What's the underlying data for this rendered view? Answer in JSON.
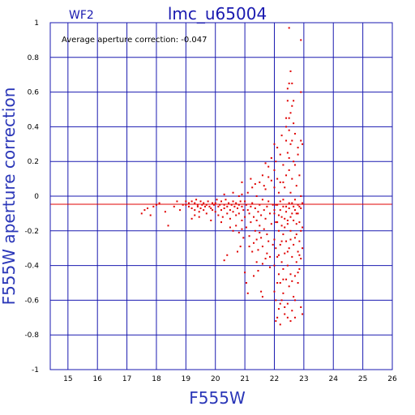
{
  "chart_data": {
    "type": "scatter",
    "title": "lmc_u65004",
    "panel_label": "WF2",
    "annotation": "Average aperture correction:  -0.047",
    "xlabel": "F555W",
    "ylabel": "F555W aperture correction",
    "xlim": [
      14.4,
      26
    ],
    "ylim": [
      -1,
      1
    ],
    "xticks": [
      15,
      16,
      17,
      18,
      19,
      20,
      21,
      22,
      23,
      24,
      25,
      26
    ],
    "yticks": [
      -1,
      -0.8,
      -0.6,
      -0.4,
      -0.2,
      0,
      0.2,
      0.4,
      0.6,
      0.8,
      1
    ],
    "ytick_labels": [
      "-1",
      "-0.8",
      "-0.6",
      "-0.4",
      "-0.2",
      "0",
      "0.2",
      "0.4",
      "0.6",
      "0.8",
      "1"
    ],
    "grid": true,
    "reference_line": {
      "y": -0.047,
      "color": "#e00000"
    },
    "colors": {
      "frame": "#1a1ab0",
      "grid": "#1a1ab0",
      "points": "#e00000"
    },
    "series": [
      {
        "points": [
          [
            17.5,
            -0.1
          ],
          [
            17.6,
            -0.08
          ],
          [
            17.7,
            -0.07
          ],
          [
            17.8,
            -0.11
          ],
          [
            17.9,
            -0.06
          ],
          [
            18.0,
            -0.05
          ],
          [
            18.1,
            -0.04
          ],
          [
            18.3,
            -0.09
          ],
          [
            18.4,
            -0.17
          ],
          [
            18.6,
            -0.06
          ],
          [
            18.7,
            -0.03
          ],
          [
            18.8,
            -0.08
          ],
          [
            18.9,
            -0.05
          ],
          [
            19.0,
            -0.05
          ],
          [
            19.1,
            -0.04
          ],
          [
            19.1,
            -0.06
          ],
          [
            19.2,
            -0.03
          ],
          [
            19.2,
            -0.07
          ],
          [
            19.3,
            -0.04
          ],
          [
            19.3,
            -0.08
          ],
          [
            19.35,
            -0.02
          ],
          [
            19.4,
            -0.05
          ],
          [
            19.4,
            -0.06
          ],
          [
            19.45,
            -0.09
          ],
          [
            19.5,
            -0.03
          ],
          [
            19.5,
            -0.07
          ],
          [
            19.55,
            -0.05
          ],
          [
            19.6,
            -0.04
          ],
          [
            19.6,
            -0.08
          ],
          [
            19.65,
            -0.06
          ],
          [
            19.7,
            -0.05
          ],
          [
            19.7,
            -0.1
          ],
          [
            19.75,
            -0.03
          ],
          [
            19.8,
            -0.06
          ],
          [
            19.85,
            -0.07
          ],
          [
            19.9,
            -0.04
          ],
          [
            19.9,
            -0.08
          ],
          [
            19.95,
            -0.05
          ],
          [
            19.2,
            -0.13
          ],
          [
            19.3,
            -0.11
          ],
          [
            19.45,
            -0.12
          ],
          [
            19.85,
            -0.14
          ],
          [
            19.0,
            -0.03
          ],
          [
            20.0,
            -0.04
          ],
          [
            20.0,
            -0.09
          ],
          [
            20.05,
            -0.02
          ],
          [
            20.1,
            -0.06
          ],
          [
            20.1,
            -0.11
          ],
          [
            20.15,
            -0.05
          ],
          [
            20.2,
            -0.03
          ],
          [
            20.2,
            -0.08
          ],
          [
            20.25,
            -0.12
          ],
          [
            20.3,
            -0.05
          ],
          [
            20.3,
            -0.07
          ],
          [
            20.35,
            -0.02
          ],
          [
            20.4,
            -0.06
          ],
          [
            20.4,
            -0.1
          ],
          [
            20.45,
            -0.04
          ],
          [
            20.5,
            -0.08
          ],
          [
            20.5,
            -0.13
          ],
          [
            20.55,
            -0.05
          ],
          [
            20.6,
            -0.03
          ],
          [
            20.6,
            -0.09
          ],
          [
            20.65,
            -0.06
          ],
          [
            20.7,
            -0.04
          ],
          [
            20.7,
            -0.11
          ],
          [
            20.75,
            -0.07
          ],
          [
            20.8,
            -0.05
          ],
          [
            20.8,
            -0.1
          ],
          [
            20.85,
            -0.03
          ],
          [
            20.9,
            -0.06
          ],
          [
            20.9,
            -0.14
          ],
          [
            20.95,
            -0.08
          ],
          [
            20.2,
            -0.15
          ],
          [
            20.5,
            -0.18
          ],
          [
            20.7,
            -0.17
          ],
          [
            20.8,
            -0.21
          ],
          [
            20.9,
            -0.19
          ],
          [
            20.3,
            0.01
          ],
          [
            20.6,
            0.02
          ],
          [
            20.8,
            0.0
          ],
          [
            20.9,
            0.01
          ],
          [
            20.4,
            -0.34
          ],
          [
            20.3,
            -0.37
          ],
          [
            20.85,
            -0.29
          ],
          [
            20.75,
            -0.32
          ],
          [
            20.6,
            -0.2
          ],
          [
            20.95,
            -0.24
          ],
          [
            20.9,
            0.08
          ],
          [
            21.0,
            -0.03
          ],
          [
            21.0,
            -0.12
          ],
          [
            21.05,
            -0.05
          ],
          [
            21.05,
            -0.18
          ],
          [
            21.1,
            -0.08
          ],
          [
            21.1,
            0.02
          ],
          [
            21.15,
            -0.1
          ],
          [
            21.15,
            -0.23
          ],
          [
            21.2,
            -0.06
          ],
          [
            21.2,
            -0.15
          ],
          [
            21.25,
            0.05
          ],
          [
            21.25,
            -0.04
          ],
          [
            21.3,
            -0.12
          ],
          [
            21.3,
            -0.27
          ],
          [
            21.35,
            -0.07
          ],
          [
            21.35,
            -0.2
          ],
          [
            21.4,
            0.0
          ],
          [
            21.4,
            -0.14
          ],
          [
            21.45,
            -0.09
          ],
          [
            21.45,
            -0.31
          ],
          [
            21.5,
            0.08
          ],
          [
            21.5,
            -0.05
          ],
          [
            21.5,
            -0.17
          ],
          [
            21.55,
            -0.11
          ],
          [
            21.55,
            -0.24
          ],
          [
            21.6,
            0.12
          ],
          [
            21.6,
            -0.02
          ],
          [
            21.6,
            -0.29
          ],
          [
            21.65,
            -0.08
          ],
          [
            21.65,
            -0.19
          ],
          [
            21.7,
            0.04
          ],
          [
            21.7,
            -0.13
          ],
          [
            21.7,
            -0.36
          ],
          [
            21.75,
            -0.06
          ],
          [
            21.75,
            -0.22
          ],
          [
            21.8,
            0.17
          ],
          [
            21.8,
            -0.03
          ],
          [
            21.8,
            -0.26
          ],
          [
            21.85,
            -0.1
          ],
          [
            21.85,
            -0.41
          ],
          [
            21.9,
            0.09
          ],
          [
            21.9,
            -0.16
          ],
          [
            21.95,
            -0.05
          ],
          [
            21.95,
            -0.28
          ],
          [
            21.0,
            -0.44
          ],
          [
            21.05,
            -0.5
          ],
          [
            21.1,
            -0.56
          ],
          [
            21.3,
            -0.46
          ],
          [
            21.4,
            -0.38
          ],
          [
            21.55,
            -0.55
          ],
          [
            21.6,
            -0.58
          ],
          [
            21.45,
            -0.43
          ],
          [
            21.7,
            0.19
          ],
          [
            21.8,
            0.11
          ],
          [
            21.9,
            0.22
          ],
          [
            21.2,
            0.1
          ],
          [
            21.35,
            0.07
          ],
          [
            21.6,
            -0.39
          ],
          [
            21.75,
            -0.33
          ],
          [
            21.85,
            -0.35
          ],
          [
            21.65,
            0.06
          ],
          [
            21.25,
            -0.32
          ],
          [
            21.5,
            -0.21
          ],
          [
            21.4,
            -0.25
          ],
          [
            21.15,
            -0.29
          ],
          [
            22.0,
            0.3
          ],
          [
            22.0,
            0.15
          ],
          [
            22.0,
            0.05
          ],
          [
            22.0,
            -0.1
          ],
          [
            22.0,
            -0.25
          ],
          [
            22.0,
            -0.4
          ],
          [
            22.0,
            -0.55
          ],
          [
            22.05,
            0.2
          ],
          [
            22.05,
            -0.05
          ],
          [
            22.05,
            -0.3
          ],
          [
            22.05,
            -0.6
          ],
          [
            22.1,
            0.28
          ],
          [
            22.1,
            0.1
          ],
          [
            22.1,
            -0.15
          ],
          [
            22.1,
            -0.35
          ],
          [
            22.1,
            -0.7
          ],
          [
            22.15,
            0.02
          ],
          [
            22.15,
            -0.2
          ],
          [
            22.15,
            -0.45
          ],
          [
            22.15,
            -0.65
          ],
          [
            22.2,
            0.24
          ],
          [
            22.2,
            0.08
          ],
          [
            22.2,
            -0.08
          ],
          [
            22.2,
            -0.28
          ],
          [
            22.2,
            -0.5
          ],
          [
            22.25,
            0.35
          ],
          [
            22.25,
            -0.12
          ],
          [
            22.25,
            -0.38
          ],
          [
            22.25,
            -0.6
          ],
          [
            22.3,
            0.18
          ],
          [
            22.3,
            -0.02
          ],
          [
            22.3,
            -0.22
          ],
          [
            22.3,
            -0.42
          ],
          [
            22.3,
            -0.56
          ],
          [
            22.35,
            0.05
          ],
          [
            22.35,
            -0.18
          ],
          [
            22.35,
            -0.33
          ],
          [
            22.35,
            -0.68
          ],
          [
            22.4,
            0.45
          ],
          [
            22.4,
            0.12
          ],
          [
            22.4,
            -0.06
          ],
          [
            22.4,
            -0.26
          ],
          [
            22.4,
            -0.48
          ],
          [
            22.45,
            0.55
          ],
          [
            22.45,
            0.25
          ],
          [
            22.45,
            -0.14
          ],
          [
            22.45,
            -0.4
          ],
          [
            22.45,
            -0.62
          ],
          [
            22.5,
            0.97
          ],
          [
            22.5,
            0.65
          ],
          [
            22.5,
            0.38
          ],
          [
            22.5,
            0.15
          ],
          [
            22.5,
            -0.04
          ],
          [
            22.5,
            -0.3
          ],
          [
            22.5,
            -0.52
          ],
          [
            22.55,
            0.72
          ],
          [
            22.55,
            0.3
          ],
          [
            22.55,
            0.02
          ],
          [
            22.55,
            -0.2
          ],
          [
            22.55,
            -0.45
          ],
          [
            22.6,
            0.52
          ],
          [
            22.6,
            0.1
          ],
          [
            22.6,
            -0.1
          ],
          [
            22.6,
            -0.35
          ],
          [
            22.6,
            -0.66
          ],
          [
            22.65,
            0.42
          ],
          [
            22.65,
            0.2
          ],
          [
            22.65,
            -0.06
          ],
          [
            22.65,
            -0.28
          ],
          [
            22.65,
            -0.58
          ],
          [
            22.7,
            0.18
          ],
          [
            22.7,
            -0.02
          ],
          [
            22.7,
            -0.24
          ],
          [
            22.7,
            -0.46
          ],
          [
            22.7,
            -0.7
          ],
          [
            22.75,
            0.06
          ],
          [
            22.75,
            -0.16
          ],
          [
            22.75,
            -0.38
          ],
          [
            22.8,
            0.28
          ],
          [
            22.8,
            -0.1
          ],
          [
            22.8,
            -0.32
          ],
          [
            22.8,
            -0.5
          ],
          [
            22.85,
            0.12
          ],
          [
            22.85,
            -0.06
          ],
          [
            22.85,
            -0.26
          ],
          [
            22.85,
            -0.42
          ],
          [
            22.9,
            0.9
          ],
          [
            22.9,
            0.6
          ],
          [
            22.9,
            0.32
          ],
          [
            22.9,
            0.0
          ],
          [
            22.9,
            -0.2
          ],
          [
            22.9,
            -0.36
          ],
          [
            22.9,
            -0.64
          ],
          [
            22.95,
            0.3
          ],
          [
            22.95,
            -0.04
          ],
          [
            22.95,
            -0.18
          ],
          [
            22.95,
            -0.3
          ],
          [
            22.95,
            -0.68
          ],
          [
            22.0,
            -0.08
          ],
          [
            22.1,
            -0.05
          ],
          [
            22.2,
            -0.03
          ],
          [
            22.3,
            -0.06
          ],
          [
            22.4,
            -0.09
          ],
          [
            22.5,
            -0.07
          ],
          [
            22.6,
            -0.04
          ],
          [
            22.7,
            -0.08
          ],
          [
            22.8,
            -0.05
          ],
          [
            22.9,
            -0.07
          ],
          [
            22.15,
            -0.11
          ],
          [
            22.35,
            -0.13
          ],
          [
            22.55,
            -0.12
          ],
          [
            22.75,
            -0.1
          ],
          [
            22.05,
            -0.15
          ],
          [
            22.25,
            -0.17
          ],
          [
            22.45,
            -0.16
          ],
          [
            22.65,
            -0.14
          ],
          [
            22.85,
            -0.15
          ],
          [
            22.45,
            0.62
          ],
          [
            22.55,
            0.48
          ],
          [
            22.6,
            0.32
          ],
          [
            22.5,
            0.22
          ],
          [
            22.4,
            0.32
          ],
          [
            22.3,
            0.08
          ],
          [
            22.2,
            -0.74
          ],
          [
            22.45,
            -0.7
          ],
          [
            22.55,
            -0.72
          ],
          [
            22.05,
            -0.72
          ],
          [
            22.7,
            0.36
          ],
          [
            22.8,
            0.24
          ],
          [
            22.65,
            0.55
          ],
          [
            22.5,
            0.45
          ],
          [
            22.6,
            0.65
          ],
          [
            22.4,
            0.4
          ],
          [
            22.3,
            -0.48
          ],
          [
            22.6,
            -0.49
          ],
          [
            22.8,
            -0.44
          ],
          [
            22.1,
            -0.5
          ],
          [
            22.2,
            -0.62
          ],
          [
            22.35,
            -0.64
          ],
          [
            22.7,
            -0.6
          ],
          [
            22.55,
            -0.25
          ],
          [
            22.75,
            -0.22
          ],
          [
            22.25,
            -0.26
          ],
          [
            22.15,
            -0.34
          ],
          [
            22.45,
            -0.32
          ],
          [
            22.85,
            -0.34
          ]
        ]
      }
    ]
  }
}
